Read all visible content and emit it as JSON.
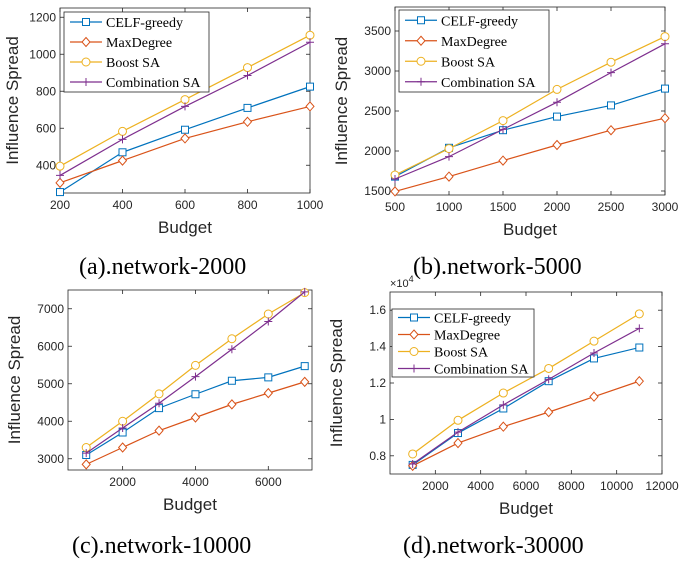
{
  "chart_data": [
    {
      "type": "line",
      "caption": "(a).network-2000",
      "xlabel": "Budget",
      "ylabel": "Influence Spread",
      "xlim": [
        200,
        1000
      ],
      "ylim": [
        250,
        1250
      ],
      "xticks": [
        200,
        400,
        600,
        800,
        1000
      ],
      "yticks": [
        400,
        600,
        800,
        1000,
        1200
      ],
      "x": [
        200,
        400,
        600,
        800,
        1000
      ],
      "legend_position": "top-left",
      "grid": false,
      "series": [
        {
          "name": "CELF-greedy",
          "color": "#0072BD",
          "marker": "square",
          "values": [
            255,
            470,
            592,
            710,
            825
          ]
        },
        {
          "name": "MaxDegree",
          "color": "#D95319",
          "marker": "diamond",
          "values": [
            305,
            425,
            545,
            635,
            718
          ]
        },
        {
          "name": "Boost SA",
          "color": "#EDB120",
          "marker": "circle",
          "values": [
            395,
            583,
            755,
            928,
            1103
          ]
        },
        {
          "name": "Combination SA",
          "color": "#7E2F8E",
          "marker": "plus",
          "values": [
            345,
            540,
            718,
            885,
            1065
          ]
        }
      ]
    },
    {
      "type": "line",
      "caption": "(b).network-5000",
      "xlabel": "Budget",
      "ylabel": "Influence Spread",
      "xlim": [
        500,
        3000
      ],
      "ylim": [
        1450,
        3800
      ],
      "xticks": [
        500,
        1000,
        1500,
        2000,
        2500,
        3000
      ],
      "yticks": [
        1500,
        2000,
        2500,
        3000,
        3500
      ],
      "x": [
        500,
        1000,
        1500,
        2000,
        2500,
        3000
      ],
      "legend_position": "top-left",
      "grid": false,
      "series": [
        {
          "name": "CELF-greedy",
          "color": "#0072BD",
          "marker": "square",
          "values": [
            1680,
            2040,
            2260,
            2430,
            2570,
            2780
          ]
        },
        {
          "name": "MaxDegree",
          "color": "#D95319",
          "marker": "diamond",
          "values": [
            1495,
            1680,
            1880,
            2075,
            2260,
            2410
          ]
        },
        {
          "name": "Boost SA",
          "color": "#EDB120",
          "marker": "circle",
          "values": [
            1700,
            2030,
            2380,
            2770,
            3110,
            3430
          ]
        },
        {
          "name": "Combination SA",
          "color": "#7E2F8E",
          "marker": "plus",
          "values": [
            1650,
            1930,
            2270,
            2610,
            2980,
            3340
          ]
        }
      ]
    },
    {
      "type": "line",
      "caption": "(c).network-10000",
      "xlabel": "Budget",
      "ylabel": "Influence Spread",
      "xlim": [
        500,
        7200
      ],
      "ylim": [
        2700,
        7500
      ],
      "xticks": [
        2000,
        4000,
        6000
      ],
      "yticks": [
        3000,
        4000,
        5000,
        6000,
        7000
      ],
      "x": [
        1000,
        2000,
        3000,
        4000,
        5000,
        6000,
        7000
      ],
      "legend_position": "none",
      "grid": false,
      "series": [
        {
          "name": "CELF-greedy",
          "color": "#0072BD",
          "marker": "square",
          "values": [
            3100,
            3700,
            4350,
            4720,
            5080,
            5170,
            5470
          ]
        },
        {
          "name": "MaxDegree",
          "color": "#D95319",
          "marker": "diamond",
          "values": [
            2850,
            3300,
            3750,
            4100,
            4450,
            4750,
            5050
          ]
        },
        {
          "name": "Boost SA",
          "color": "#EDB120",
          "marker": "circle",
          "values": [
            3300,
            4000,
            4730,
            5490,
            6200,
            6860,
            7430
          ]
        },
        {
          "name": "Combination SA",
          "color": "#7E2F8E",
          "marker": "plus",
          "values": [
            3150,
            3820,
            4480,
            5190,
            5920,
            6660,
            7450
          ]
        }
      ]
    },
    {
      "type": "line",
      "caption": "(d).network-30000",
      "xlabel": "Budget",
      "ylabel": "Influence Spread",
      "xlim": [
        0,
        12000
      ],
      "ylim": [
        7000,
        17000
      ],
      "xticks": [
        2000,
        4000,
        6000,
        8000,
        10000,
        12000
      ],
      "yticks": [
        8000,
        10000,
        12000,
        14000,
        16000
      ],
      "ytick_labels": [
        "0.8",
        "1",
        "1.2",
        "1.4",
        "1.6"
      ],
      "y_multiplier": "×10",
      "y_multiplier_exp": "4",
      "x": [
        1000,
        3000,
        5000,
        7000,
        9000,
        11000
      ],
      "legend_position": "top-left",
      "grid": false,
      "series": [
        {
          "name": "CELF-greedy",
          "color": "#0072BD",
          "marker": "square",
          "values": [
            7500,
            9250,
            10600,
            12100,
            13350,
            13950
          ]
        },
        {
          "name": "MaxDegree",
          "color": "#D95319",
          "marker": "diamond",
          "values": [
            7450,
            8700,
            9600,
            10400,
            11250,
            12100
          ]
        },
        {
          "name": "Boost SA",
          "color": "#EDB120",
          "marker": "circle",
          "values": [
            8100,
            9950,
            11450,
            12800,
            14300,
            15800
          ]
        },
        {
          "name": "Combination SA",
          "color": "#7E2F8E",
          "marker": "plus",
          "values": [
            7550,
            9300,
            10800,
            12200,
            13650,
            15000
          ]
        }
      ]
    }
  ]
}
